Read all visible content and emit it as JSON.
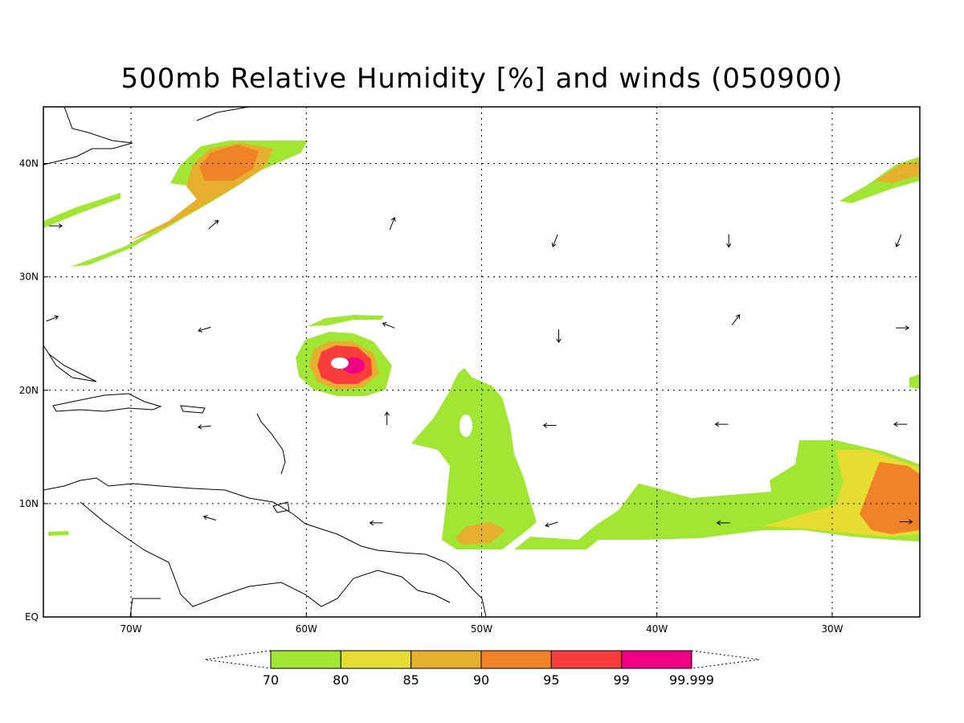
{
  "title": "500mb Relative Humidity [%] and winds (050900)",
  "map": {
    "lon_range": [
      -75,
      -25
    ],
    "lat_range": [
      0,
      45
    ],
    "x_ticks": [
      {
        "lon": -70,
        "label": "70W"
      },
      {
        "lon": -60,
        "label": "60W"
      },
      {
        "lon": -50,
        "label": "50W"
      },
      {
        "lon": -40,
        "label": "40W"
      },
      {
        "lon": -30,
        "label": "30W"
      }
    ],
    "y_ticks": [
      {
        "lat": 0,
        "label": "EQ"
      },
      {
        "lat": 10,
        "label": "10N"
      },
      {
        "lat": 20,
        "label": "20N"
      },
      {
        "lat": 30,
        "label": "30N"
      },
      {
        "lat": 40,
        "label": "40N"
      }
    ],
    "grid": "dotted"
  },
  "colorbar": {
    "labels": [
      "70",
      "80",
      "85",
      "90",
      "95",
      "99",
      "99.999"
    ],
    "colors": [
      "#a0e632",
      "#e6dc32",
      "#e6af2d",
      "#f08228",
      "#fa3c3c",
      "#f00082"
    ]
  },
  "winds": [
    {
      "lon": -74.3,
      "lat": 34.5,
      "u": 1,
      "v": 0
    },
    {
      "lon": -74.5,
      "lat": 26.3,
      "u": 1,
      "v": 0.4
    },
    {
      "lon": -65.3,
      "lat": 34.6,
      "u": 0.8,
      "v": 0.7
    },
    {
      "lon": -55.1,
      "lat": 34.7,
      "u": 0.4,
      "v": 1
    },
    {
      "lon": -45.8,
      "lat": 33.2,
      "u": -0.4,
      "v": -1
    },
    {
      "lon": -35.9,
      "lat": 33.2,
      "u": 0,
      "v": -1
    },
    {
      "lon": -26.2,
      "lat": 33.2,
      "u": -0.4,
      "v": -1
    },
    {
      "lon": -65.8,
      "lat": 25.4,
      "u": -1,
      "v": -0.3
    },
    {
      "lon": -55.3,
      "lat": 25.7,
      "u": -1,
      "v": 0.4
    },
    {
      "lon": -45.6,
      "lat": 24.8,
      "u": 0,
      "v": -1
    },
    {
      "lon": -35.5,
      "lat": 26.2,
      "u": 0.6,
      "v": 0.8
    },
    {
      "lon": -26.0,
      "lat": 25.5,
      "u": 1,
      "v": 0
    },
    {
      "lon": -65.8,
      "lat": 16.8,
      "u": -1,
      "v": -0.1
    },
    {
      "lon": -55.4,
      "lat": 17.5,
      "u": 0,
      "v": 1
    },
    {
      "lon": -46.1,
      "lat": 16.9,
      "u": -1,
      "v": 0
    },
    {
      "lon": -36.3,
      "lat": 17.0,
      "u": -1,
      "v": 0
    },
    {
      "lon": -26.1,
      "lat": 17.0,
      "u": -1,
      "v": 0
    },
    {
      "lon": -65.5,
      "lat": 8.7,
      "u": -1,
      "v": 0.3
    },
    {
      "lon": -56.0,
      "lat": 8.3,
      "u": -1,
      "v": 0
    },
    {
      "lon": -46.0,
      "lat": 8.2,
      "u": -1,
      "v": -0.3
    },
    {
      "lon": -36.2,
      "lat": 8.3,
      "u": -1,
      "v": 0
    },
    {
      "lon": -25.8,
      "lat": 8.4,
      "u": 1,
      "v": 0
    }
  ]
}
